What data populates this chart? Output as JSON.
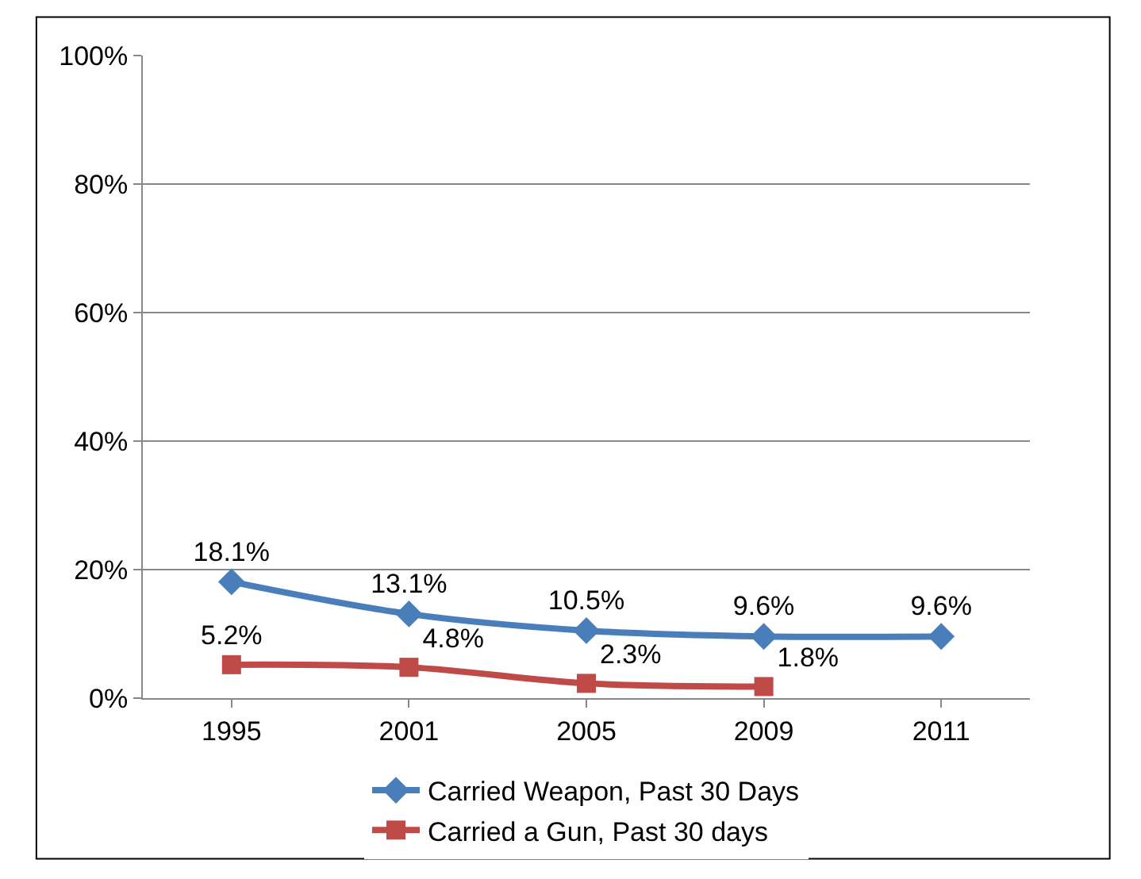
{
  "chart_data": {
    "type": "line",
    "categories": [
      "1995",
      "2001",
      "2005",
      "2009",
      "2011"
    ],
    "series": [
      {
        "name": "Carried Weapon, Past 30 Days",
        "color": "#4a7ebb",
        "marker": "diamond",
        "values": [
          18.1,
          13.1,
          10.5,
          9.6,
          9.6
        ],
        "value_labels": [
          "18.1%",
          "13.1%",
          "10.5%",
          "9.6%",
          "9.6%"
        ]
      },
      {
        "name": "Carried a Gun, Past 30 days",
        "color": "#be4b48",
        "marker": "square",
        "values": [
          5.2,
          4.8,
          2.3,
          1.8,
          null
        ],
        "value_labels": [
          "5.2%",
          "4.8%",
          "2.3%",
          "1.8%",
          null
        ]
      }
    ],
    "ylim": [
      0,
      100
    ],
    "yticks": [
      {
        "value": 0,
        "label": "0%"
      },
      {
        "value": 20,
        "label": "20%"
      },
      {
        "value": 40,
        "label": "40%"
      },
      {
        "value": 60,
        "label": "60%"
      },
      {
        "value": 80,
        "label": "80%"
      },
      {
        "value": 100,
        "label": "100%"
      }
    ],
    "grid": "y",
    "legend": "bottom"
  }
}
